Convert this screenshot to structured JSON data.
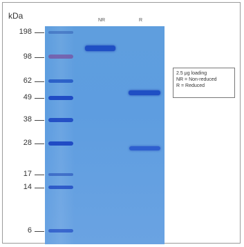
{
  "axis_label": "kDa",
  "lanes": [
    "NR",
    "R"
  ],
  "markers": [
    "198",
    "98",
    "62",
    "49",
    "38",
    "28",
    "17",
    "14",
    "6"
  ],
  "legend": {
    "line1": "2.5 μg loading",
    "line2": "NR = Non-reduced",
    "line3": "R = Reduced"
  }
}
